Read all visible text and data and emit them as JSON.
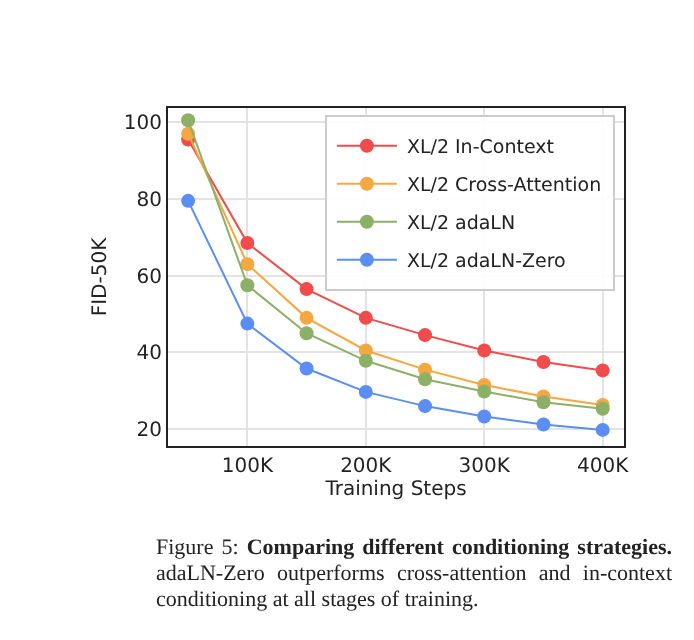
{
  "chart_data": {
    "type": "line",
    "xlabel": "Training Steps",
    "ylabel": "FID-50K",
    "x": [
      50000,
      100000,
      150000,
      200000,
      250000,
      300000,
      350000,
      400000
    ],
    "series": [
      {
        "name": "XL/2 In-Context",
        "color": "#f24b4b",
        "values": [
          95.5,
          68.5,
          56.5,
          49,
          44.5,
          40.5,
          37.5,
          35.3
        ]
      },
      {
        "name": "XL/2 Cross-Attention",
        "color": "#f5a742",
        "values": [
          97,
          63,
          49,
          40.5,
          35.5,
          31.5,
          28.5,
          26.3
        ]
      },
      {
        "name": "XL/2 adaLN",
        "color": "#8bb066",
        "values": [
          100.5,
          57.5,
          45,
          37.8,
          33,
          29.8,
          27,
          25.3
        ]
      },
      {
        "name": "XL/2 adaLN-Zero",
        "color": "#5b8ef5",
        "values": [
          79.5,
          47.5,
          35.8,
          29.7,
          26,
          23.3,
          21.2,
          19.8
        ]
      }
    ],
    "xlim": [
      33000,
      418000
    ],
    "xticks": [
      {
        "value": 100000,
        "label": "100K"
      },
      {
        "value": 200000,
        "label": "200K"
      },
      {
        "value": 300000,
        "label": "300K"
      },
      {
        "value": 400000,
        "label": "400K"
      }
    ],
    "ylim": [
      15.6,
      103.7
    ],
    "yticks": [
      20,
      40,
      60,
      80,
      100
    ],
    "grid": true,
    "legend": "top right",
    "marker": "circle",
    "line_style": "solid",
    "annotations": [
      "Figure 5:",
      "Comparing different conditioning strategies.",
      "adaLN-Zero outperforms cross-attention and in-context conditioning at all stages of training."
    ]
  }
}
